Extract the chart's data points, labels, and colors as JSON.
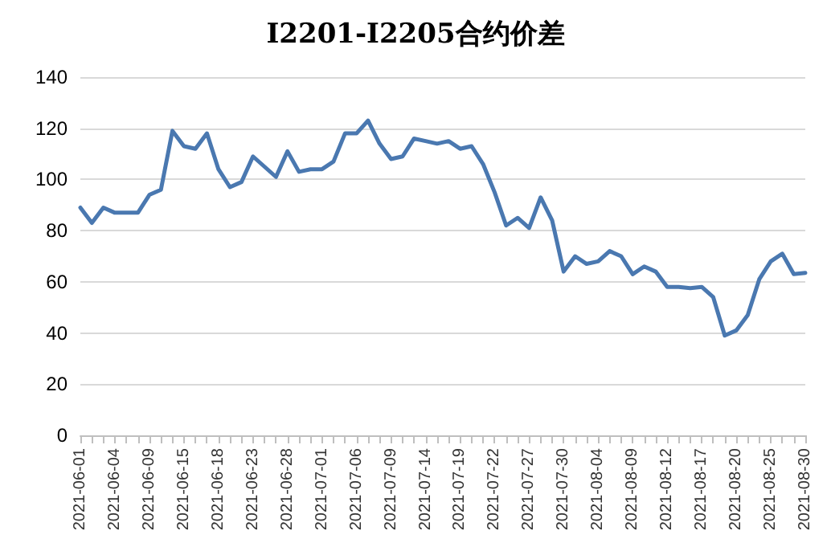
{
  "chart_data": {
    "type": "line",
    "title": "I2201-I2205合约价差",
    "categories": [
      "2021-06-01",
      null,
      null,
      "2021-06-04",
      null,
      null,
      "2021-06-09",
      null,
      null,
      "2021-06-15",
      null,
      null,
      "2021-06-18",
      null,
      null,
      "2021-06-23",
      null,
      null,
      "2021-06-28",
      null,
      null,
      "2021-07-01",
      null,
      null,
      "2021-07-06",
      null,
      null,
      "2021-07-09",
      null,
      null,
      "2021-07-14",
      null,
      null,
      "2021-07-19",
      null,
      null,
      "2021-07-22",
      null,
      null,
      "2021-07-27",
      null,
      null,
      "2021-07-30",
      null,
      null,
      "2021-08-04",
      null,
      null,
      "2021-08-09",
      null,
      null,
      "2021-08-12",
      null,
      null,
      "2021-08-17",
      null,
      null,
      "2021-08-20",
      null,
      null,
      "2021-08-25",
      null,
      null,
      "2021-08-30"
    ],
    "series": [
      {
        "color": "#4a78b0",
        "values": [
          89,
          83,
          89,
          87,
          87,
          87,
          94,
          96,
          119,
          113,
          112,
          118,
          104,
          97,
          99,
          109,
          105,
          101,
          111,
          103,
          104,
          104,
          107,
          118,
          118,
          123,
          114,
          108,
          109,
          116,
          115,
          114,
          115,
          112,
          113,
          106,
          95,
          82,
          85,
          81,
          93,
          84,
          64,
          70,
          67,
          68,
          72,
          70,
          63,
          66,
          64,
          58,
          58,
          57.5,
          58,
          54,
          39,
          41,
          47,
          61,
          68,
          71,
          63,
          63.5
        ]
      }
    ],
    "ylim": [
      0,
      140
    ],
    "yticks": [
      0,
      20,
      40,
      60,
      80,
      100,
      120,
      140
    ],
    "grid": "y",
    "marker": "none",
    "line_style": "solid"
  }
}
